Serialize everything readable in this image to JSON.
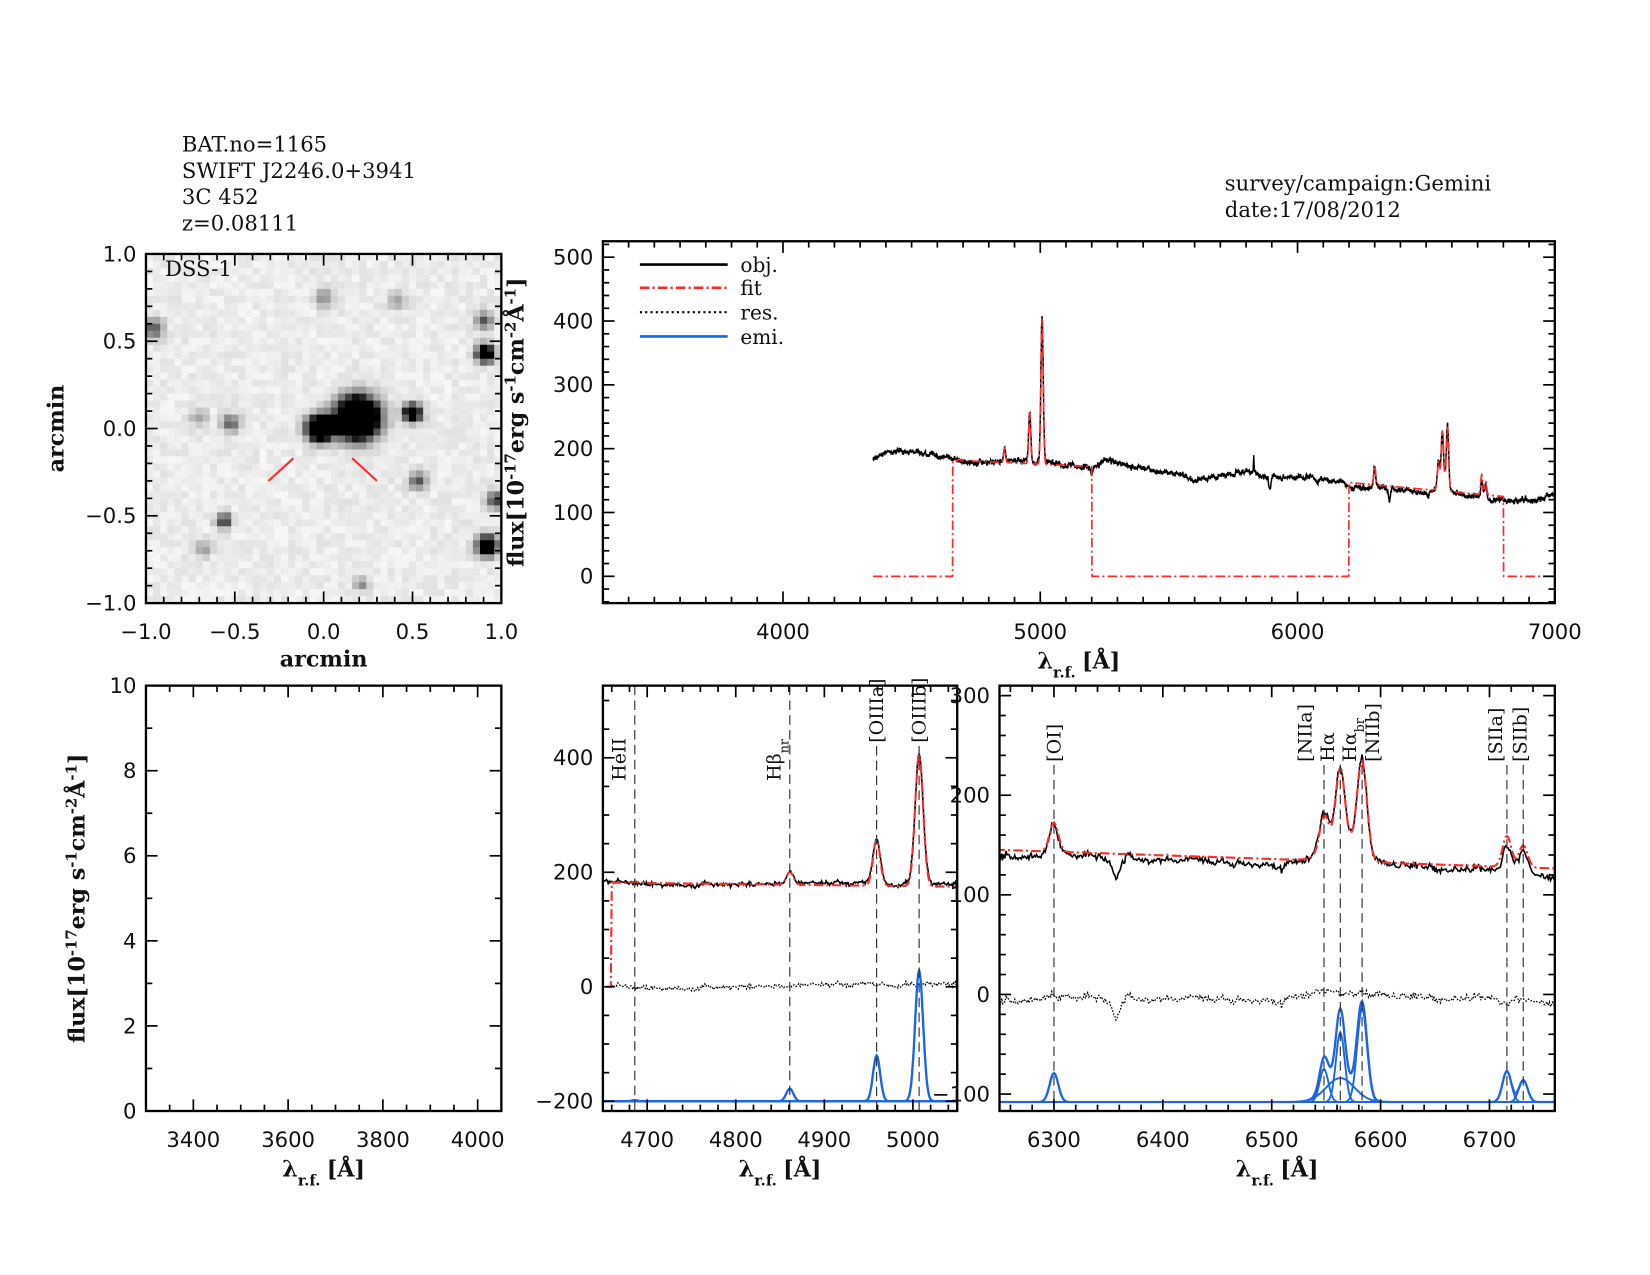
{
  "header": {
    "lines": [
      "BAT.no=1165",
      "SWIFT J2246.0+3941",
      "3C 452",
      "z=0.08111"
    ],
    "survey": "survey/campaign:Gemini",
    "date": "date:17/08/2012"
  },
  "colors": {
    "obj": "#000000",
    "fit": "#ff2a2a",
    "res": "#000000",
    "emi": "#1a66e6",
    "marker": "#ff2a2a",
    "heii_label": "#ff2a2a",
    "frame": "#000000"
  },
  "legend": {
    "position": "top-left",
    "entries": [
      {
        "label": "obj.",
        "style": "solid",
        "color_key": "obj"
      },
      {
        "label": "fit",
        "style": "dash-dot",
        "color_key": "fit"
      },
      {
        "label": "res.",
        "style": "dotted",
        "color_key": "res"
      },
      {
        "label": "emi.",
        "style": "solid",
        "color_key": "emi"
      }
    ]
  },
  "flux_label": [
    {
      "t": "flux[10"
    },
    {
      "t": "-17",
      "sup": true
    },
    {
      "t": "erg s"
    },
    {
      "t": "-1",
      "sup": true
    },
    {
      "t": "cm"
    },
    {
      "t": "-2",
      "sup": true
    },
    {
      "t": "Å"
    },
    {
      "t": "-1",
      "sup": true
    },
    {
      "t": "]"
    }
  ],
  "wavelength_label": {
    "symbol": "λ",
    "sub": "r.f.",
    "unit": "[Å]"
  },
  "spectrum": {
    "wavelength_range": [
      4350,
      7000
    ],
    "obj_continuum": [
      [
        4350,
        186
      ],
      [
        4400,
        195
      ],
      [
        4450,
        196
      ],
      [
        4600,
        190
      ],
      [
        4650,
        182
      ],
      [
        4700,
        179
      ],
      [
        4900,
        180
      ],
      [
        5000,
        181
      ],
      [
        5100,
        175
      ],
      [
        5200,
        170
      ],
      [
        5250,
        183
      ],
      [
        5300,
        178
      ],
      [
        5400,
        168
      ],
      [
        5500,
        162
      ],
      [
        5600,
        151
      ],
      [
        5700,
        158
      ],
      [
        5800,
        162
      ],
      [
        5850,
        158
      ],
      [
        5950,
        155
      ],
      [
        6000,
        156
      ],
      [
        6100,
        152
      ],
      [
        6200,
        145
      ],
      [
        6250,
        140
      ],
      [
        6300,
        140
      ],
      [
        6350,
        138
      ],
      [
        6400,
        134
      ],
      [
        6500,
        131
      ],
      [
        6540,
        136
      ],
      [
        6600,
        133
      ],
      [
        6650,
        128
      ],
      [
        6700,
        124
      ],
      [
        6750,
        118
      ],
      [
        6800,
        120
      ],
      [
        6900,
        118
      ],
      [
        7000,
        128
      ]
    ],
    "obj_features": [
      {
        "wavelength": 5200,
        "depth": -14,
        "sigma": 4
      },
      {
        "wavelength": 5830,
        "depth": 28,
        "sigma": 1.2
      },
      {
        "wavelength": 5893,
        "depth": -22,
        "sigma": 4
      },
      {
        "wavelength": 6357,
        "depth": -18,
        "sigma": 3
      },
      {
        "wavelength": 6369,
        "depth": 6,
        "sigma": 3
      }
    ],
    "fit_windows": [
      {
        "range": [
          4660,
          5200
        ],
        "continuum": [
          [
            4660,
            182
          ],
          [
            5200,
            172
          ]
        ]
      },
      {
        "range": [
          6200,
          6800
        ],
        "continuum": [
          [
            6200,
            147
          ],
          [
            6800,
            125
          ]
        ]
      }
    ],
    "emission_lines": [
      {
        "id": "HeII",
        "text": "HeII",
        "sub": "",
        "wavelength": 4686,
        "peak": 2,
        "sigma": 3,
        "color_key": "heii_label"
      },
      {
        "id": "Hb_nr",
        "text": "Hβ",
        "sub": "nr",
        "wavelength": 4861,
        "peak": 22,
        "sigma": 4
      },
      {
        "id": "OIIIa",
        "text": "[OIIIa]",
        "sub": "",
        "wavelength": 4959,
        "peak": 80,
        "sigma": 4
      },
      {
        "id": "OIIIb",
        "text": "[OIIIb]",
        "sub": "",
        "wavelength": 5007,
        "peak": 228,
        "sigma": 4.5
      },
      {
        "id": "OI",
        "text": "[OI]",
        "sub": "",
        "wavelength": 6300,
        "peak": 29,
        "sigma": 4
      },
      {
        "id": "NIIa",
        "text": "[NIIa]",
        "sub": "",
        "wavelength": 6548,
        "peak": 33,
        "sigma": 4
      },
      {
        "id": "Ha",
        "text": "Hα",
        "sub": "",
        "wavelength": 6563,
        "peak": 70,
        "sigma": 4
      },
      {
        "id": "Ha_br",
        "text": "Hα",
        "sub": "br",
        "wavelength": 6563,
        "peak": 24,
        "sigma": 13
      },
      {
        "id": "NIIb",
        "text": "[NIIb]",
        "sub": "",
        "wavelength": 6583,
        "peak": 94,
        "sigma": 4.5
      },
      {
        "id": "SIIa",
        "text": "[SIIa]",
        "sub": "",
        "wavelength": 6716,
        "peak": 31,
        "sigma": 4
      },
      {
        "id": "SIIb",
        "text": "[SIIb]",
        "sub": "",
        "wavelength": 6731,
        "peak": 22,
        "sigma": 4
      }
    ]
  },
  "chart_data": [
    {
      "id": "img",
      "type": "image",
      "label": "DSS-1",
      "xlabel": "arcmin",
      "ylabel": "arcmin",
      "xlim": [
        -1,
        1
      ],
      "ylim": [
        -1,
        1
      ],
      "xticks": [
        "−1.0",
        "−0.5",
        "0.0",
        "0.5",
        "1.0"
      ],
      "yticks": [
        "−1.0",
        "−0.5",
        "0.0",
        "0.5",
        "1.0"
      ]
    },
    {
      "id": "top",
      "type": "line",
      "xlim": [
        3300,
        7000
      ],
      "ylim": [
        -42,
        525
      ],
      "xticks": [
        "4000",
        "5000",
        "6000",
        "7000"
      ],
      "yticks": [
        "0",
        "100",
        "200",
        "300",
        "400",
        "500"
      ],
      "series": [
        "obj",
        "fit"
      ],
      "legend": true
    },
    {
      "id": "bl",
      "type": "line",
      "xlim": [
        3300,
        4050
      ],
      "ylim": [
        0,
        10
      ],
      "xticks": [
        "3400",
        "3600",
        "3800",
        "4000"
      ],
      "yticks": [
        "0",
        "2",
        "4",
        "6",
        "8",
        "10"
      ],
      "series": []
    },
    {
      "id": "bm",
      "type": "line",
      "xlim": [
        4650,
        5050
      ],
      "ylim": [
        -217,
        526
      ],
      "xticks": [
        "4700",
        "4800",
        "4900",
        "5000"
      ],
      "yticks": [
        "−200",
        "0",
        "200",
        "400"
      ],
      "series": [
        "obj",
        "fit",
        "res",
        "emi"
      ],
      "emission_baseline": -200,
      "line_markers": [
        "HeII",
        "Hb_nr",
        "OIIIa",
        "OIIIb"
      ]
    },
    {
      "id": "br",
      "type": "line",
      "xlim": [
        6250,
        6760
      ],
      "ylim": [
        -117,
        310
      ],
      "xticks": [
        "6300",
        "6400",
        "6500",
        "6600",
        "6700"
      ],
      "yticks": [
        "−100",
        "0",
        "100",
        "200",
        "300"
      ],
      "series": [
        "obj",
        "fit",
        "res",
        "emi"
      ],
      "emission_baseline": -108,
      "line_markers": [
        "OI",
        "NIIa",
        "Ha",
        "Ha_br",
        "NIIb",
        "SIIa",
        "SIIb"
      ]
    }
  ]
}
